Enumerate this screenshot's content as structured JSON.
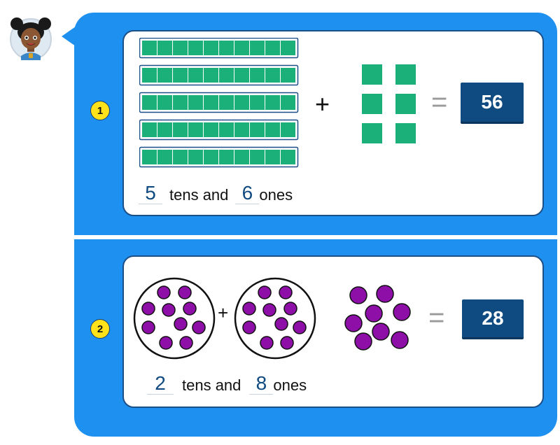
{
  "colors": {
    "panel_blue": "#1e90f0",
    "card_border": "#1b4f88",
    "answer_box": "#0f4b80",
    "block_green": "#1bb07a",
    "counter_purple": "#8e0ea8",
    "badge_yellow": "#ffe21a"
  },
  "character": {
    "icon": "girl-avatar-icon"
  },
  "problems": [
    {
      "number": "1",
      "ten_rods": 5,
      "unit_cubes": 6,
      "plus": "+",
      "equals": "=",
      "answer": "56",
      "tens_value": "5",
      "ones_value": "6",
      "tens_text": "tens and",
      "ones_text": "ones"
    },
    {
      "number": "2",
      "groups_of_ten": 2,
      "loose_counters": 8,
      "plus": "+",
      "equals": "=",
      "answer": "28",
      "tens_value": "2",
      "ones_value": "8",
      "tens_text": "tens and",
      "ones_text": "ones"
    }
  ]
}
